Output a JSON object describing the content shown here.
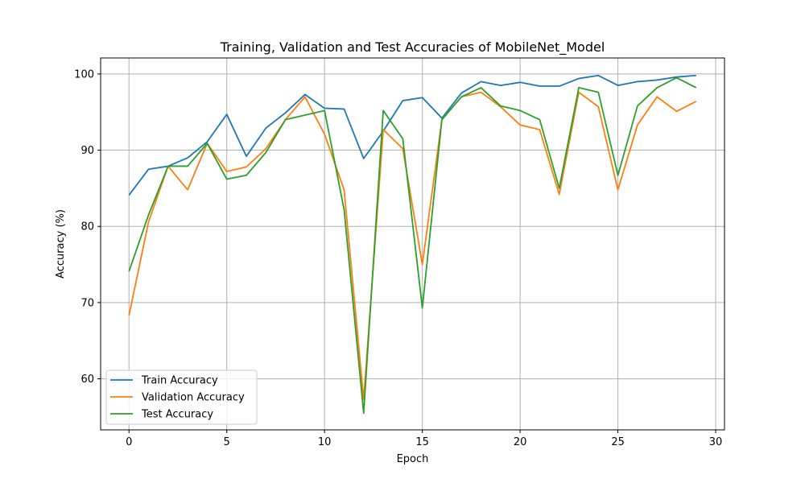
{
  "chart_data": {
    "type": "line",
    "title": "Training, Validation and Test Accuracies of MobileNet_Model",
    "xlabel": "Epoch",
    "ylabel": "Accuracy (%)",
    "xlim": [
      -1.45,
      30.45
    ],
    "ylim": [
      53.3,
      102.1
    ],
    "xticks": [
      0,
      5,
      10,
      15,
      20,
      25,
      30
    ],
    "yticks": [
      60,
      70,
      80,
      90,
      100
    ],
    "grid": true,
    "legend_position": "lower-left",
    "x": [
      0,
      1,
      2,
      3,
      4,
      5,
      6,
      7,
      8,
      9,
      10,
      11,
      12,
      13,
      14,
      15,
      16,
      17,
      18,
      19,
      20,
      21,
      22,
      23,
      24,
      25,
      26,
      27,
      28,
      29
    ],
    "series": [
      {
        "name": "Train Accuracy",
        "color": "#1f77b4",
        "values": [
          84.1,
          87.5,
          87.9,
          89.0,
          91.1,
          94.7,
          89.2,
          92.9,
          94.9,
          97.3,
          95.5,
          95.4,
          88.9,
          92.5,
          96.5,
          96.9,
          94.2,
          97.5,
          99.0,
          98.5,
          98.9,
          98.4,
          98.4,
          99.4,
          99.8,
          98.5,
          99.0,
          99.2,
          99.6,
          99.8
        ]
      },
      {
        "name": "Validation Accuracy",
        "color": "#ff7f0e",
        "values": [
          68.3,
          80.6,
          87.9,
          84.8,
          90.9,
          87.2,
          87.8,
          90.2,
          94.0,
          97.0,
          92.1,
          84.8,
          57.3,
          92.7,
          90.2,
          75.0,
          94.0,
          97.0,
          97.6,
          95.7,
          93.3,
          92.7,
          84.2,
          97.6,
          95.7,
          84.8,
          93.3,
          97.0,
          95.1,
          96.4
        ]
      },
      {
        "name": "Test Accuracy",
        "color": "#2ca02c",
        "values": [
          74.1,
          81.5,
          87.9,
          87.9,
          90.9,
          86.2,
          86.7,
          89.7,
          94.0,
          94.6,
          95.2,
          82.2,
          55.5,
          95.2,
          91.5,
          69.3,
          94.0,
          97.0,
          98.2,
          95.8,
          95.2,
          94.0,
          85.0,
          98.2,
          97.6,
          86.7,
          95.8,
          98.2,
          99.5,
          98.2
        ]
      }
    ]
  }
}
